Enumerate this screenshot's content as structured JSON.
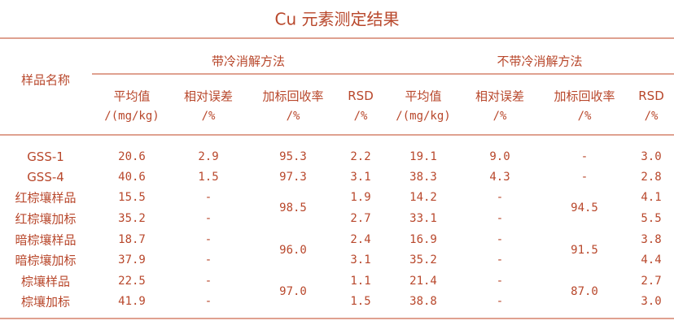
{
  "title": "Cu 元素测定结果",
  "header": {
    "sample_name": "样品名称",
    "group_with": "带冷消解方法",
    "group_without": "不带冷消解方法",
    "columns": [
      {
        "label": "平均值",
        "unit": "/(mg/kg)"
      },
      {
        "label": "相对误差",
        "unit": "/%"
      },
      {
        "label": "加标回收率",
        "unit": "/%"
      },
      {
        "label": "RSD",
        "unit": "/%"
      },
      {
        "label": "平均值",
        "unit": "/(mg/kg)"
      },
      {
        "label": "相对误差",
        "unit": "/%"
      },
      {
        "label": "加标回收率",
        "unit": "/%"
      },
      {
        "label": "RSD",
        "unit": "/%"
      }
    ]
  },
  "rows": [
    {
      "name": "GSS-1",
      "with_mean": "20.6",
      "with_err": "2.9",
      "with_rsd": "2.2",
      "without_mean": "19.1",
      "without_err": "9.0",
      "without_rsd": "3.0"
    },
    {
      "name": "GSS-4",
      "with_mean": "40.6",
      "with_err": "1.5",
      "with_rsd": "3.1",
      "without_mean": "38.3",
      "without_err": "4.3",
      "without_rsd": "2.8"
    },
    {
      "name": "红棕壤样品",
      "with_mean": "15.5",
      "with_err": "-",
      "with_rsd": "1.9",
      "without_mean": "14.2",
      "without_err": "-",
      "without_rsd": "4.1"
    },
    {
      "name": "红棕壤加标",
      "with_mean": "35.2",
      "with_err": "-",
      "with_rsd": "2.7",
      "without_mean": "33.1",
      "without_err": "-",
      "without_rsd": "5.5"
    },
    {
      "name": "暗棕壤样品",
      "with_mean": "18.7",
      "with_err": "-",
      "with_rsd": "2.4",
      "without_mean": "16.9",
      "without_err": "-",
      "without_rsd": "3.8"
    },
    {
      "name": "暗棕壤加标",
      "with_mean": "37.9",
      "with_err": "-",
      "with_rsd": "3.1",
      "without_mean": "35.2",
      "without_err": "-",
      "without_rsd": "4.4"
    },
    {
      "name": "棕壤样品",
      "with_mean": "22.5",
      "with_err": "-",
      "with_rsd": "1.1",
      "without_mean": "21.4",
      "without_err": "-",
      "without_rsd": "2.7"
    },
    {
      "name": "棕壤加标",
      "with_mean": "41.9",
      "with_err": "-",
      "with_rsd": "1.5",
      "without_mean": "38.8",
      "without_err": "-",
      "without_rsd": "3.0"
    }
  ],
  "recovery": [
    {
      "rows": [
        0
      ],
      "with": "95.3",
      "without": "-"
    },
    {
      "rows": [
        1
      ],
      "with": "97.3",
      "without": "-"
    },
    {
      "rows": [
        2,
        3
      ],
      "with": "98.5",
      "without": "94.5"
    },
    {
      "rows": [
        4,
        5
      ],
      "with": "96.0",
      "without": "91.5"
    },
    {
      "rows": [
        6,
        7
      ],
      "with": "97.0",
      "without": "87.0"
    }
  ],
  "colors": {
    "text": "#b8472b",
    "rule": "#dfa190"
  }
}
